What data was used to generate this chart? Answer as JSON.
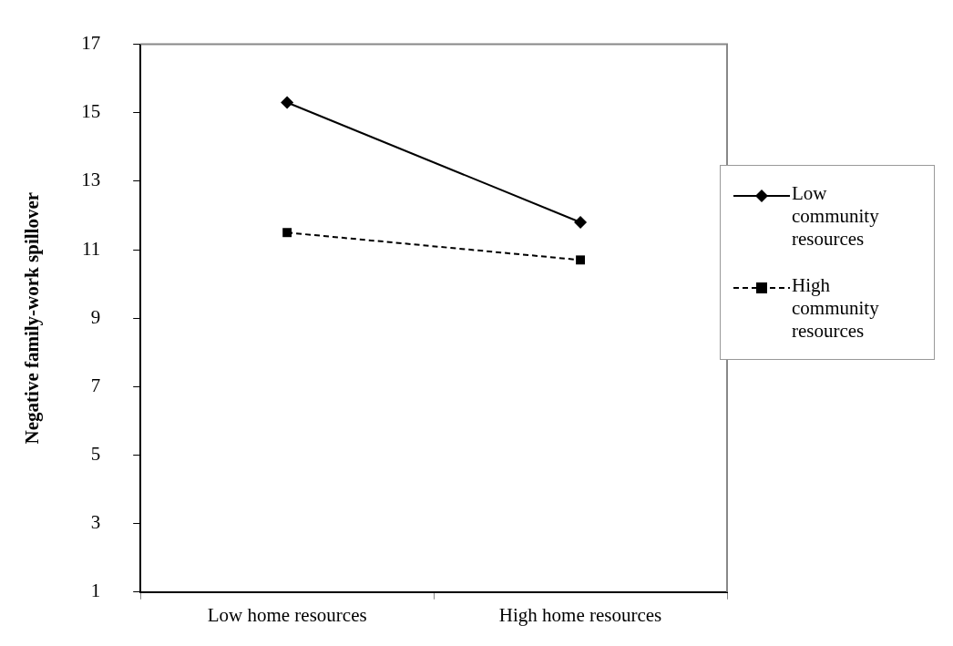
{
  "chart_data": {
    "type": "line",
    "ylabel": "Negative family-work spillover",
    "categories": [
      "Low home resources",
      "High home resources"
    ],
    "series": [
      {
        "name": "Low community resources",
        "color": "#000000",
        "values": [
          15.3,
          11.8
        ],
        "marker": "diamond",
        "line_style": "solid"
      },
      {
        "name": "High community resources",
        "color": "#000000",
        "values": [
          11.5,
          10.7
        ],
        "marker": "square",
        "line_style": "dashed"
      }
    ],
    "ylim": [
      1,
      17
    ],
    "yticks": [
      1,
      3,
      5,
      7,
      9,
      11,
      13,
      15,
      17
    ],
    "grid": false,
    "legend": "right"
  }
}
